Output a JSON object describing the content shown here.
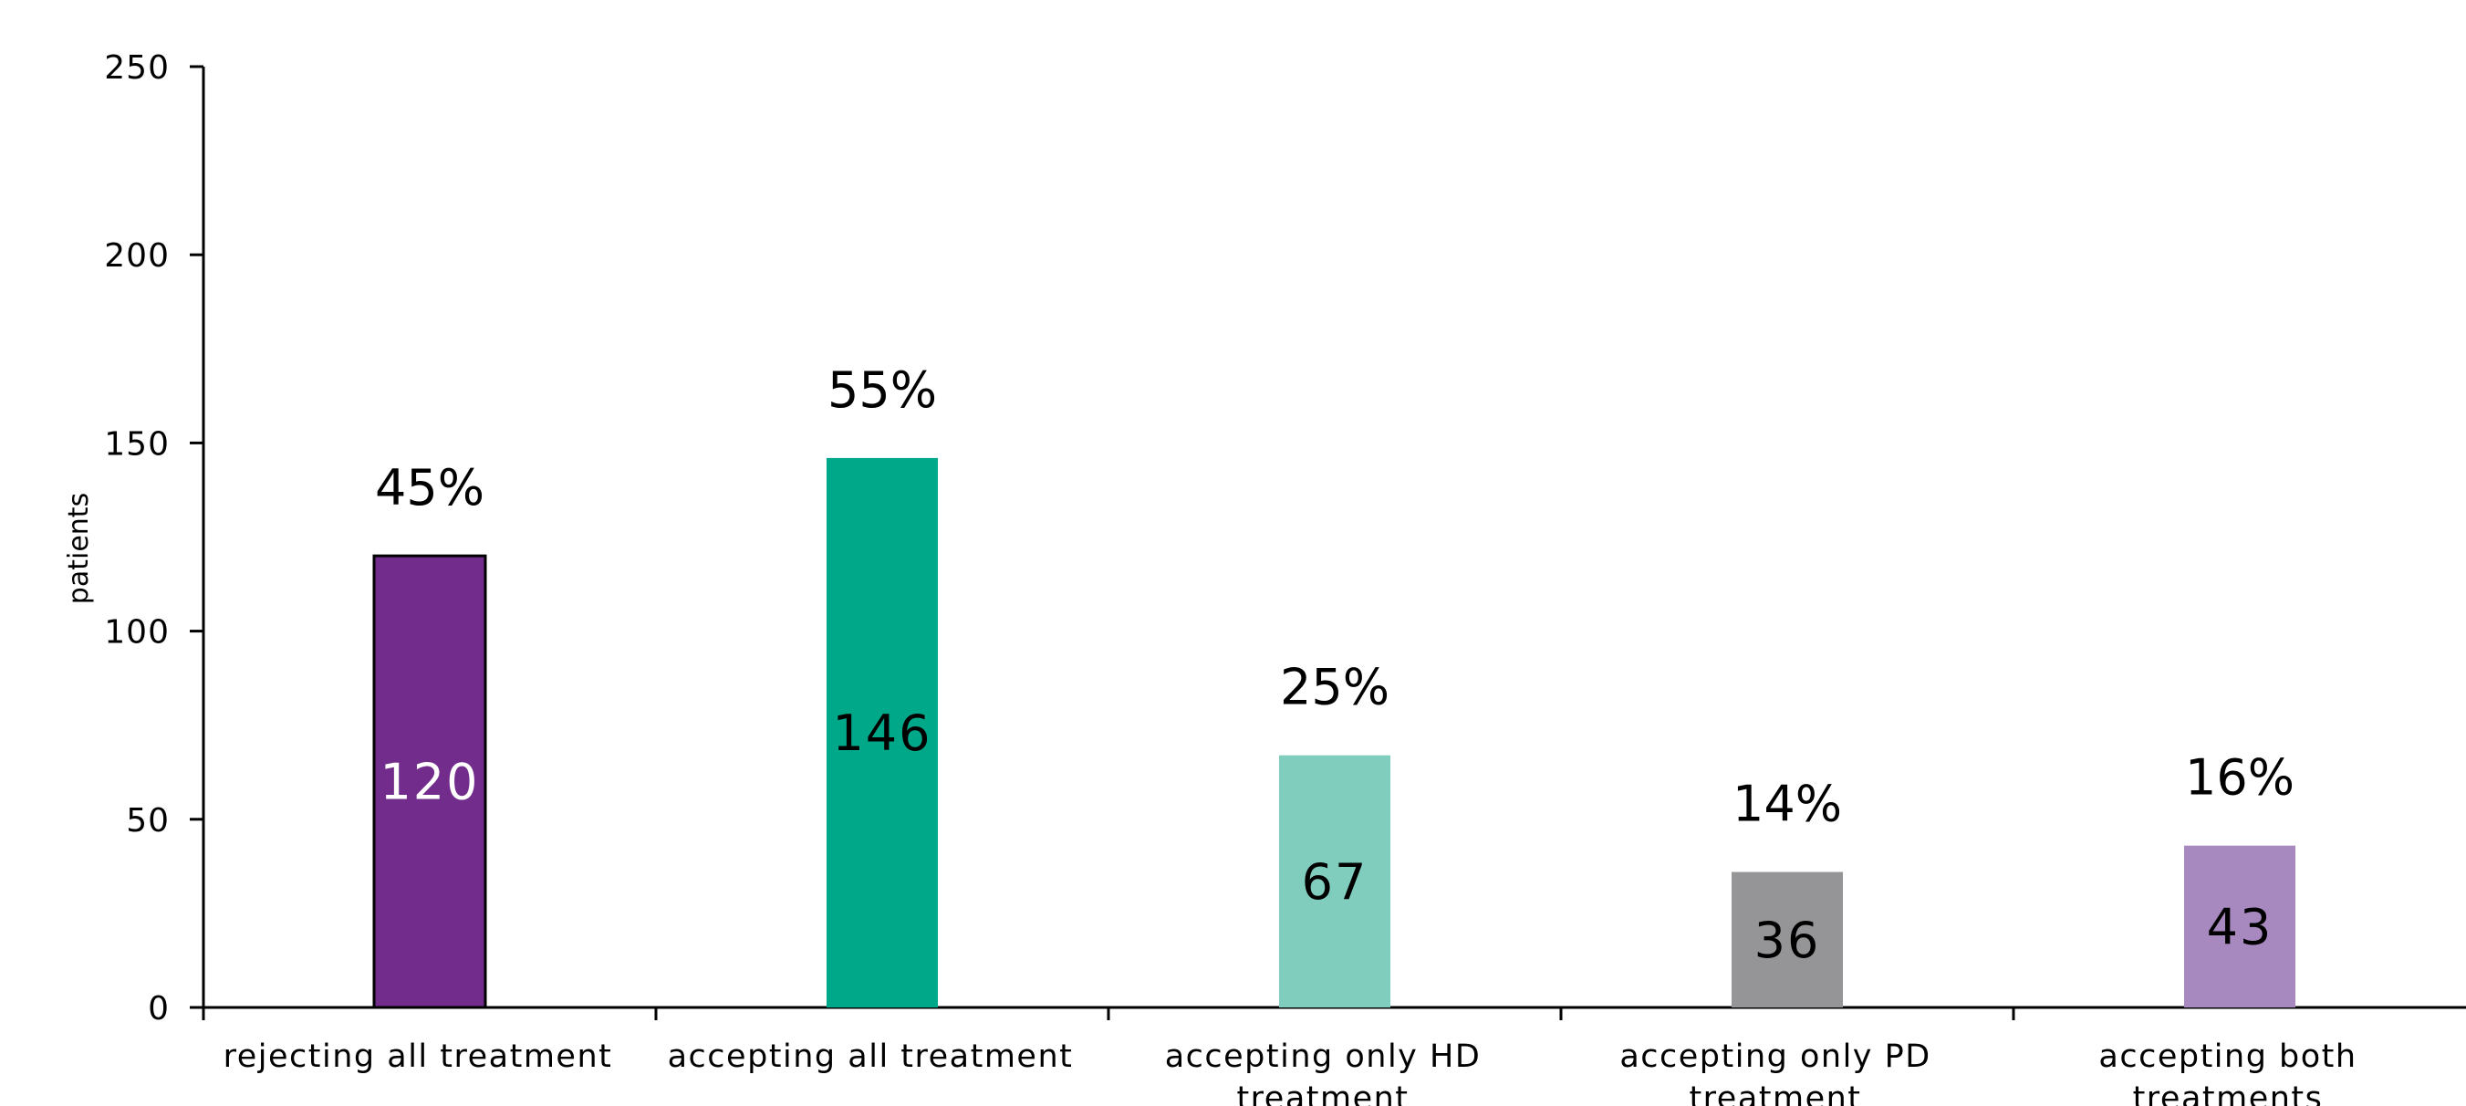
{
  "chart_data": {
    "type": "bar",
    "title": "",
    "xlabel": "",
    "ylabel": "patients",
    "ylim": [
      0,
      250
    ],
    "yticks": [
      0,
      50,
      100,
      150,
      200,
      250
    ],
    "grid": false,
    "categories": [
      [
        "rejecting all treatment"
      ],
      [
        "accepting all treatment"
      ],
      [
        "accepting only HD",
        "treatment"
      ],
      [
        "accepting only PD",
        "treatment"
      ],
      [
        "accepting both",
        "treatments"
      ]
    ],
    "values": [
      120,
      146,
      67,
      36,
      43
    ],
    "percent_labels": [
      "45%",
      "55%",
      "25%",
      "14%",
      "16%"
    ],
    "colors": [
      "#722c8c",
      "#00a88a",
      "#80cdbe",
      "#959597",
      "#a789c0"
    ],
    "value_label_colors": [
      "#ffffff",
      "#000000",
      "#000000",
      "#000000",
      "#000000"
    ],
    "bar_outline": [
      true,
      false,
      false,
      false,
      false
    ]
  }
}
